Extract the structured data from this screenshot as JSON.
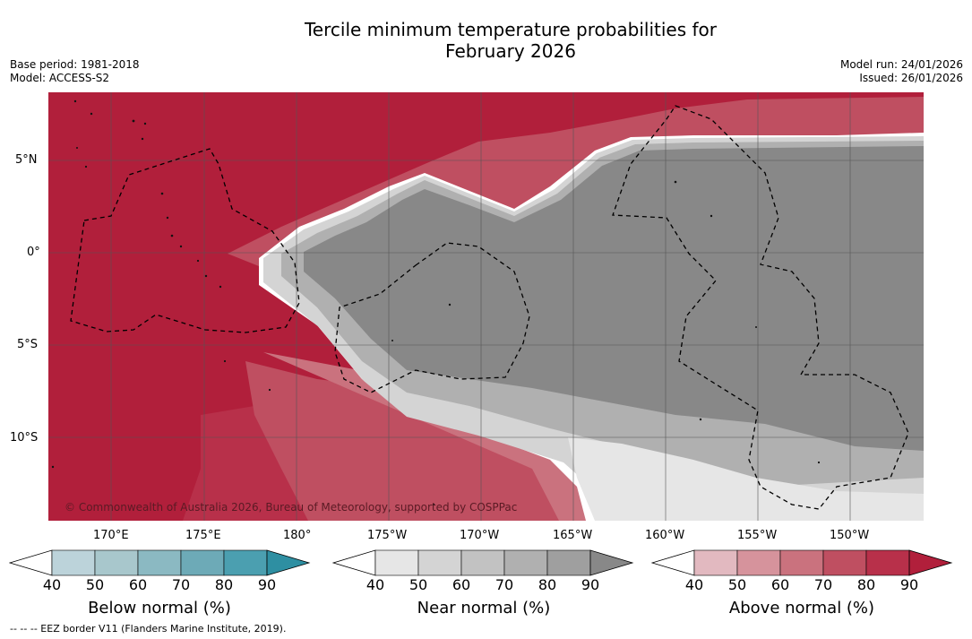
{
  "header": {
    "title_line1": "Tercile minimum temperature probabilities for",
    "title_line2": "February 2026",
    "base_period": "Base period: 1981-2018",
    "model": "Model: ACCESS-S2",
    "model_run": "Model run: 24/01/2026",
    "issued": "Issued: 26/01/2026"
  },
  "map": {
    "lat_labels": [
      "5°N",
      "0°",
      "5°S",
      "10°S"
    ],
    "lon_labels": [
      "170°E",
      "175°E",
      "180°",
      "175°W",
      "170°W",
      "165°W",
      "160°W",
      "155°W",
      "150°W"
    ],
    "copyright": "© Commonwealth of Australia 2026, Bureau of Meteorology, supported by COSPPac",
    "region_colors": {
      "above_90": "#b11f3b",
      "near_90": "#888888",
      "land_coast": "#000000"
    }
  },
  "legends": {
    "ticks": [
      "40",
      "50",
      "60",
      "70",
      "80",
      "90"
    ],
    "below": {
      "title": "Below normal (%)",
      "colors": [
        "#bcd3da",
        "#a8c7cc",
        "#8bb9c2",
        "#6daab7",
        "#4b9fb0",
        "#2e8fa2"
      ]
    },
    "near": {
      "title": "Near normal (%)",
      "colors": [
        "#e6e6e6",
        "#d4d4d4",
        "#c2c2c2",
        "#b0b0b0",
        "#9f9f9f",
        "#888888"
      ]
    },
    "above": {
      "title": "Above normal (%)",
      "colors": [
        "#e2b9c0",
        "#d6939c",
        "#ca727e",
        "#bf4f61",
        "#b8304a",
        "#b11f3b"
      ]
    }
  },
  "footnote": "-- -- -- EEZ border V11 (Flanders Marine Institute, 2019)."
}
